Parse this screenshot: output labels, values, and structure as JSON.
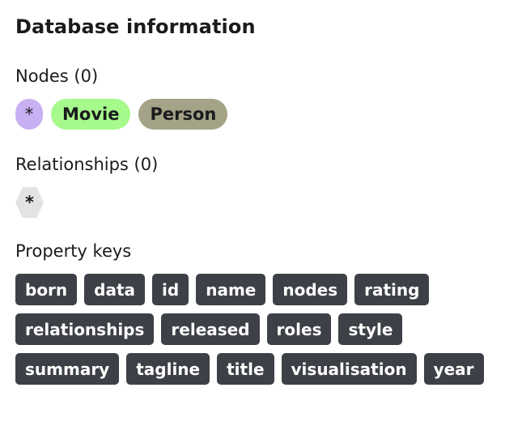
{
  "title": "Database information",
  "nodes": {
    "heading": "Nodes (0)",
    "labels": [
      {
        "text": "*",
        "color": "#c9b0f2"
      },
      {
        "text": "Movie",
        "color": "#a6f98b"
      },
      {
        "text": "Person",
        "color": "#a4a387"
      }
    ]
  },
  "relationships": {
    "heading": "Relationships (0)",
    "types": [
      {
        "text": "*",
        "color": "#e2e3e5"
      }
    ]
  },
  "property_keys": {
    "heading": "Property keys",
    "chip_bg": "#3d4046",
    "chip_fg": "#ffffff",
    "rows": [
      [
        "born",
        "data",
        "id",
        "name",
        "nodes",
        "rating"
      ],
      [
        "relationships",
        "released",
        "roles",
        "style"
      ],
      [
        "summary",
        "tagline",
        "title",
        "visualisation",
        "year"
      ]
    ]
  }
}
